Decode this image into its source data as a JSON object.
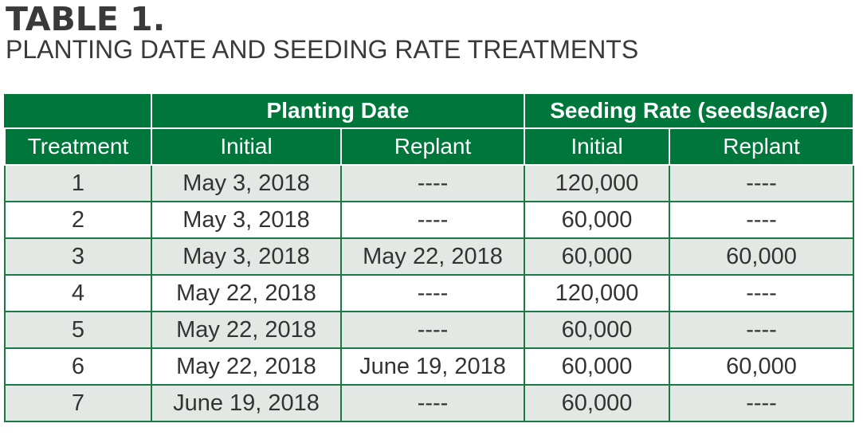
{
  "title": "TABLE 1.",
  "subtitle": "PLANTING DATE AND SEEDING RATE TREATMENTS",
  "table": {
    "group_headers": {
      "planting_date": "Planting Date",
      "seeding_rate": "Seeding Rate (seeds/acre)"
    },
    "columns": [
      "Treatment",
      "Initial",
      "Replant",
      "Initial",
      "Replant"
    ],
    "rows": [
      [
        "1",
        "May 3, 2018",
        "----",
        "120,000",
        "----"
      ],
      [
        "2",
        "May 3, 2018",
        "----",
        "60,000",
        "----"
      ],
      [
        "3",
        "May 3, 2018",
        "May 22, 2018",
        "60,000",
        "60,000"
      ],
      [
        "4",
        "May 22, 2018",
        "----",
        "120,000",
        "----"
      ],
      [
        "5",
        "May 22, 2018",
        "----",
        "60,000",
        "----"
      ],
      [
        "6",
        "May 22, 2018",
        "June 19, 2018",
        "60,000",
        "60,000"
      ],
      [
        "7",
        "June 19, 2018",
        "----",
        "60,000",
        "----"
      ]
    ]
  },
  "colors": {
    "header_green": "#00773a",
    "row_shade": "#e4e8e5",
    "border_green": "#1a7a45"
  }
}
